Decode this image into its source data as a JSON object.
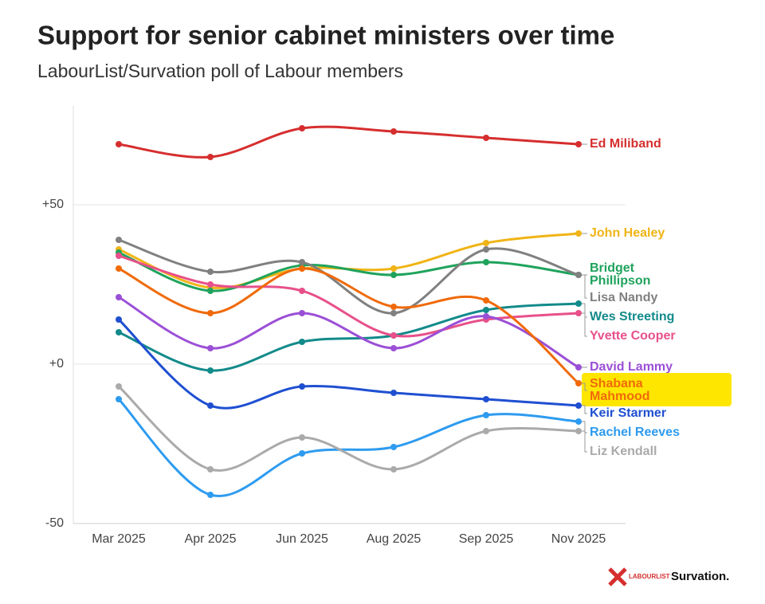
{
  "chart_data": {
    "type": "line",
    "title": "Support for senior cabinet ministers over time",
    "subtitle": "LabourList/Survation poll of Labour members",
    "categories": [
      "Mar 2025",
      "Apr 2025",
      "Jun 2025",
      "Aug 2025",
      "Sep 2025",
      "Nov 2025"
    ],
    "ylim": [
      -50,
      81
    ],
    "yticks": [
      {
        "value": -50,
        "label": "-50"
      },
      {
        "value": 0,
        "label": "+0"
      },
      {
        "value": 50,
        "label": "+50"
      }
    ],
    "grid": true,
    "series": [
      {
        "name": "Ed Miliband",
        "color": "#d62e2e",
        "values": [
          69,
          65,
          74,
          73,
          71,
          69
        ]
      },
      {
        "name": "John Healey",
        "color": "#f0b416",
        "values": [
          36,
          24,
          30,
          30,
          38,
          41
        ]
      },
      {
        "name": "Bridget Phillipson",
        "color": "#1fa35c",
        "values": [
          35,
          23,
          31,
          28,
          32,
          28
        ]
      },
      {
        "name": "Lisa Nandy",
        "color": "#808080",
        "values": [
          39,
          29,
          32,
          16,
          36,
          28
        ]
      },
      {
        "name": "Wes Streeting",
        "color": "#138a8a",
        "values": [
          10,
          -2,
          7,
          9,
          17,
          19
        ]
      },
      {
        "name": "Yvette Cooper",
        "color": "#e8508a",
        "values": [
          34,
          25,
          23,
          9,
          14,
          16
        ]
      },
      {
        "name": "David Lammy",
        "color": "#9b4fd6",
        "values": [
          21,
          5,
          16,
          5,
          15,
          -1
        ]
      },
      {
        "name": "Shabana Mahmood",
        "color": "#f06a0a",
        "values": [
          30,
          16,
          30,
          18,
          20,
          -6
        ]
      },
      {
        "name": "Keir Starmer",
        "color": "#1f4fd1",
        "values": [
          14,
          -13,
          -7,
          -9,
          -11,
          -13
        ]
      },
      {
        "name": "Rachel Reeves",
        "color": "#2e9bef",
        "values": [
          -11,
          -41,
          -28,
          -26,
          -16,
          -18
        ]
      },
      {
        "name": "Liz Kendall",
        "color": "#aaaaaa",
        "values": [
          -7,
          -33,
          -23,
          -33,
          -21,
          -21
        ]
      }
    ],
    "highlight": "Shabana Mahmood",
    "logo_left": "LABOURLIST",
    "logo_right": "Survation."
  }
}
